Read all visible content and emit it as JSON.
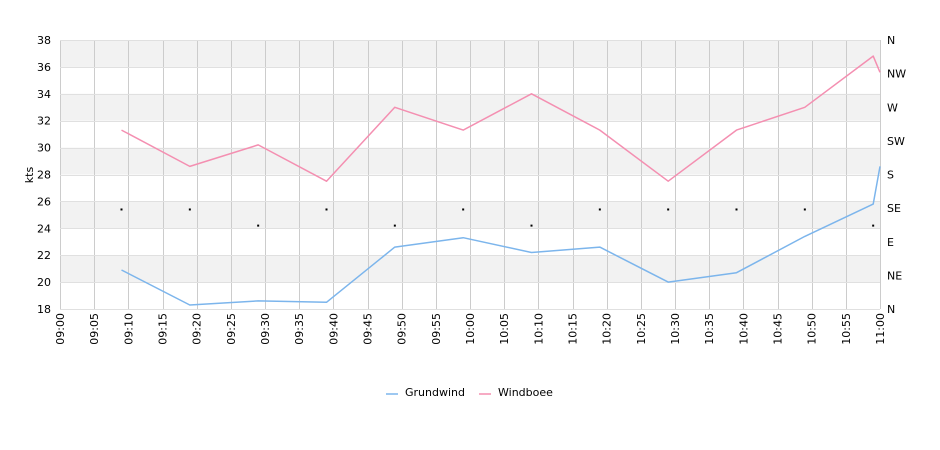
{
  "chart_data": {
    "type": "line",
    "ylabel": "kts",
    "ylim": [
      18,
      38
    ],
    "y_ticks": [
      "18",
      "20",
      "22",
      "24",
      "26",
      "28",
      "30",
      "32",
      "34",
      "36",
      "38"
    ],
    "x_ticks": [
      "09:00",
      "09:05",
      "09:10",
      "09:15",
      "09:20",
      "09:25",
      "09:30",
      "09:35",
      "09:40",
      "09:45",
      "09:50",
      "09:55",
      "10:00",
      "10:05",
      "10:10",
      "10:15",
      "10:20",
      "10:25",
      "10:30",
      "10:35",
      "10:40",
      "10:45",
      "10:50",
      "10:55",
      "11:00"
    ],
    "direction_ticks": [
      "N",
      "NE",
      "E",
      "SE",
      "S",
      "SW",
      "W",
      "NW",
      "N"
    ],
    "grid": true,
    "legend_position": "bottom",
    "colors": {
      "Grundwind": "#7cb5ec",
      "Windboee": "#f48fb1",
      "band": "#f2f2f2",
      "grid": "#cccccc"
    },
    "series": [
      {
        "name": "Grundwind",
        "points": [
          [
            "09:09",
            20.9
          ],
          [
            "09:19",
            18.3
          ],
          [
            "09:29",
            18.6
          ],
          [
            "09:39",
            18.5
          ],
          [
            "09:49",
            22.6
          ],
          [
            "09:59",
            23.3
          ],
          [
            "10:09",
            22.2
          ],
          [
            "10:19",
            22.6
          ],
          [
            "10:29",
            20.0
          ],
          [
            "10:39",
            20.7
          ],
          [
            "10:49",
            23.4
          ],
          [
            "10:59",
            25.8
          ],
          [
            "11:00",
            28.6
          ]
        ]
      },
      {
        "name": "Windboee",
        "points": [
          [
            "09:09",
            31.3
          ],
          [
            "09:19",
            28.6
          ],
          [
            "09:29",
            30.2
          ],
          [
            "09:39",
            27.5
          ],
          [
            "09:49",
            33.0
          ],
          [
            "09:59",
            31.3
          ],
          [
            "10:09",
            34.0
          ],
          [
            "10:19",
            31.3
          ],
          [
            "10:29",
            27.5
          ],
          [
            "10:39",
            31.3
          ],
          [
            "10:49",
            33.0
          ],
          [
            "10:59",
            36.8
          ],
          [
            "11:00",
            35.6
          ]
        ]
      }
    ],
    "direction_markers": [
      [
        "09:09",
        25.4
      ],
      [
        "09:19",
        25.4
      ],
      [
        "09:29",
        24.2
      ],
      [
        "09:39",
        25.4
      ],
      [
        "09:49",
        24.2
      ],
      [
        "09:59",
        25.4
      ],
      [
        "10:09",
        24.2
      ],
      [
        "10:19",
        25.4
      ],
      [
        "10:29",
        25.4
      ],
      [
        "10:39",
        25.4
      ],
      [
        "10:49",
        25.4
      ],
      [
        "10:59",
        24.2
      ]
    ]
  }
}
